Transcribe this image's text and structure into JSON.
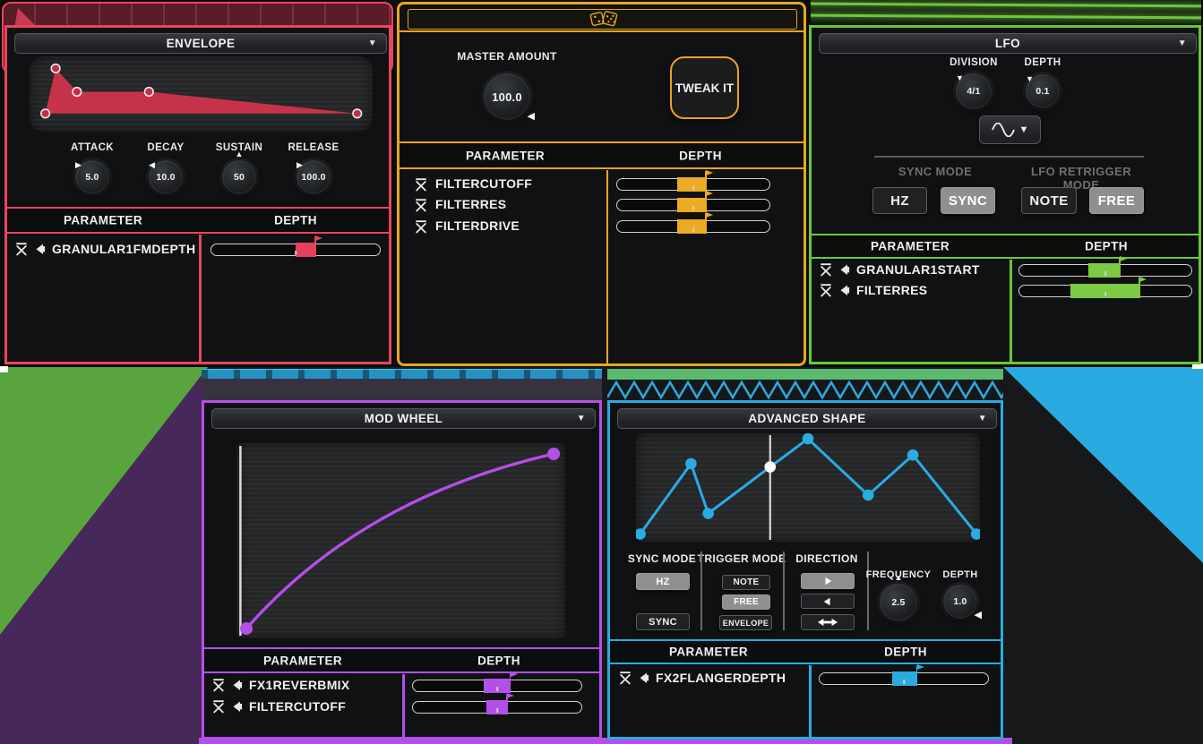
{
  "ui": {
    "dropdown_glyph": "▼"
  },
  "env": {
    "title": "ENVELOPE",
    "knobs": [
      {
        "label": "ATTACK",
        "value": "5.0",
        "pointer": {
          "glyph": "▶",
          "pos": "tl"
        }
      },
      {
        "label": "DECAY",
        "value": "10.0",
        "pointer": {
          "glyph": "◀",
          "pos": "tl"
        }
      },
      {
        "label": "SUSTAIN",
        "value": "50",
        "pointer": {
          "glyph": "▲",
          "pos": "n"
        }
      },
      {
        "label": "RELEASE",
        "value": "100.0",
        "pointer": {
          "glyph": "▶",
          "pos": "tl"
        }
      }
    ],
    "headers": {
      "parameter": "PARAMETER",
      "depth": "DEPTH"
    },
    "rows": [
      {
        "name": "GRANULAR1FMDEPTH",
        "slider": {
          "start_pct": 50,
          "width_pct": 12.1
        }
      }
    ],
    "curve_points": [
      [
        0.046,
        0.76
      ],
      [
        0.076,
        0.16
      ],
      [
        0.138,
        0.47
      ],
      [
        0.348,
        0.47
      ],
      [
        0.955,
        0.76
      ]
    ]
  },
  "rnd": {
    "master_label": "MASTER AMOUNT",
    "master_value": "100.0",
    "master_pointer": {
      "glyph": "◀",
      "pos": "br"
    },
    "tweak_label": "TWEAK IT",
    "headers": {
      "parameter": "PARAMETER",
      "depth": "DEPTH"
    },
    "rows": [
      {
        "name": "FILTERCUTOFF",
        "slider": {
          "start_pct": 39.5,
          "width_pct": 19.2
        }
      },
      {
        "name": "FILTERRES",
        "slider": {
          "start_pct": 39.5,
          "width_pct": 19.2
        }
      },
      {
        "name": "FILTERDRIVE",
        "slider": {
          "start_pct": 39.5,
          "width_pct": 19.2
        }
      }
    ]
  },
  "lfo": {
    "title": "LFO",
    "division_label": "DIVISION",
    "division_value": "4/1",
    "division_pointer": {
      "glyph": "▼",
      "pos": "tl"
    },
    "depth_label": "DEPTH",
    "depth_value": "0.1",
    "depth_pointer": {
      "glyph": "▼",
      "pos": "tl"
    },
    "waveform": "sine",
    "sync_label": "SYNC MODE",
    "sync_buttons": [
      {
        "label": "HZ",
        "selected": false
      },
      {
        "label": "SYNC",
        "selected": true
      }
    ],
    "retrig_label": "LFO RETRIGGER MODE",
    "retrig_buttons": [
      {
        "label": "NOTE",
        "selected": false
      },
      {
        "label": "FREE",
        "selected": true
      }
    ],
    "headers": {
      "parameter": "PARAMETER",
      "depth": "DEPTH"
    },
    "rows": [
      {
        "name": "GRANULAR1START",
        "slider": {
          "start_pct": 40,
          "width_pct": 18.6
        }
      },
      {
        "name": "FILTERRES",
        "slider": {
          "start_pct": 29.9,
          "width_pct": 40.2
        }
      }
    ]
  },
  "mw": {
    "title": "MOD WHEEL",
    "headers": {
      "parameter": "PARAMETER",
      "depth": "DEPTH"
    },
    "rows": [
      {
        "name": "FX1REVERBMIX",
        "slider": {
          "start_pct": 42.1,
          "width_pct": 15.8
        }
      },
      {
        "name": "FILTERCUTOFF",
        "slider": {
          "start_pct": 43.7,
          "width_pct": 12.6
        }
      }
    ],
    "curve": {
      "p0": [
        0.03,
        0.95
      ],
      "ctrl": [
        0.38,
        0.28
      ],
      "p1": [
        0.965,
        0.055
      ]
    },
    "playhead_x": 0.012
  },
  "adv": {
    "title": "ADVANCED SHAPE",
    "sync_label": "SYNC MODE",
    "sync_buttons": [
      {
        "label": "HZ",
        "selected": true
      },
      {
        "label": "SYNC",
        "selected": false
      }
    ],
    "trigger_label": "TRIGGER MODE",
    "trigger_buttons": [
      {
        "label": "NOTE",
        "selected": false
      },
      {
        "label": "FREE",
        "selected": true
      },
      {
        "label": "ENVELOPE",
        "selected": false
      }
    ],
    "direction_label": "DIRECTION",
    "direction_buttons": [
      {
        "icon": "arrow-right",
        "selected": true
      },
      {
        "icon": "arrow-left",
        "selected": false
      },
      {
        "icon": "arrow-both",
        "selected": false
      }
    ],
    "freq_label": "FREQUENCY",
    "freq_value": "2.5",
    "freq_pointer": {
      "glyph": "▲",
      "pos": "n"
    },
    "depth_label": "DEPTH",
    "depth_value": "1.0",
    "depth_pointer": {
      "glyph": "◀",
      "pos": "br"
    },
    "headers": {
      "parameter": "PARAMETER",
      "depth": "DEPTH"
    },
    "rows": [
      {
        "name": "FX2FLANGERDEPTH",
        "slider": {
          "start_pct": 43.2,
          "width_pct": 14.7
        }
      }
    ],
    "shape_points": [
      [
        0.012,
        0.93
      ],
      [
        0.16,
        0.28
      ],
      [
        0.21,
        0.74
      ],
      [
        0.39,
        0.31
      ],
      [
        0.5,
        0.05
      ],
      [
        0.675,
        0.57
      ],
      [
        0.805,
        0.2
      ],
      [
        0.99,
        0.93
      ]
    ],
    "playhead_x": 0.39,
    "active_point_index": 3
  }
}
